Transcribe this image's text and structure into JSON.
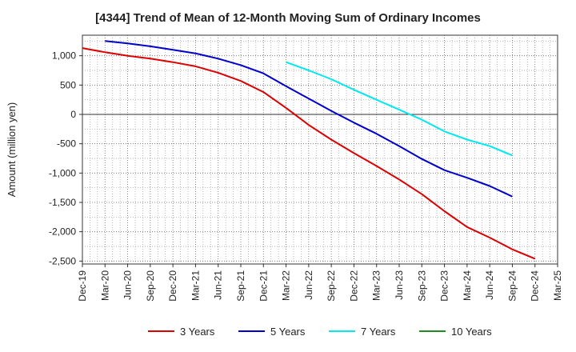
{
  "chart_data": {
    "type": "line",
    "title": "[4344]  Trend of Mean of 12-Month Moving Sum of Ordinary Incomes",
    "xlabel": "",
    "ylabel": "Amount (million yen)",
    "ylim": [
      -2550,
      1350
    ],
    "yticks": [
      1000,
      500,
      0,
      -500,
      -1000,
      -1500,
      -2000,
      -2500
    ],
    "ytick_labels": [
      "1,000",
      "500",
      "0",
      "-500",
      "-1,000",
      "-1,500",
      "-2,000",
      "-2,500"
    ],
    "categories": [
      "Dec-19",
      "Mar-20",
      "Jun-20",
      "Sep-20",
      "Dec-20",
      "Mar-21",
      "Jun-21",
      "Sep-21",
      "Dec-21",
      "Mar-22",
      "Jun-22",
      "Sep-22",
      "Dec-22",
      "Mar-23",
      "Jun-23",
      "Sep-23",
      "Dec-23",
      "Mar-24",
      "Jun-24",
      "Sep-24",
      "Dec-24",
      "Mar-25"
    ],
    "grid": true,
    "legend_position": "bottom",
    "series": [
      {
        "name": "3 Years",
        "color": "#dd0000",
        "values": [
          1130,
          1060,
          1000,
          950,
          890,
          820,
          710,
          570,
          380,
          110,
          -180,
          -430,
          -660,
          -880,
          -1110,
          -1360,
          -1650,
          -1920,
          -2100,
          -2300,
          -2460,
          null
        ]
      },
      {
        "name": "5 Years",
        "color": "#0000cc",
        "values": [
          null,
          1250,
          1210,
          1160,
          1100,
          1040,
          950,
          840,
          700,
          480,
          270,
          60,
          -140,
          -330,
          -540,
          -760,
          -950,
          -1080,
          -1220,
          -1400,
          null,
          null
        ]
      },
      {
        "name": "7 Years",
        "color": "#00e8f0",
        "values": [
          null,
          null,
          null,
          null,
          null,
          null,
          null,
          null,
          null,
          890,
          750,
          600,
          420,
          250,
          80,
          -90,
          -290,
          -430,
          -540,
          -700,
          null,
          null
        ]
      },
      {
        "name": "10 Years",
        "color": "#228b22",
        "values": [
          null,
          null,
          null,
          null,
          null,
          null,
          null,
          null,
          null,
          null,
          null,
          null,
          null,
          null,
          null,
          null,
          null,
          null,
          null,
          null,
          null,
          null
        ]
      }
    ]
  }
}
